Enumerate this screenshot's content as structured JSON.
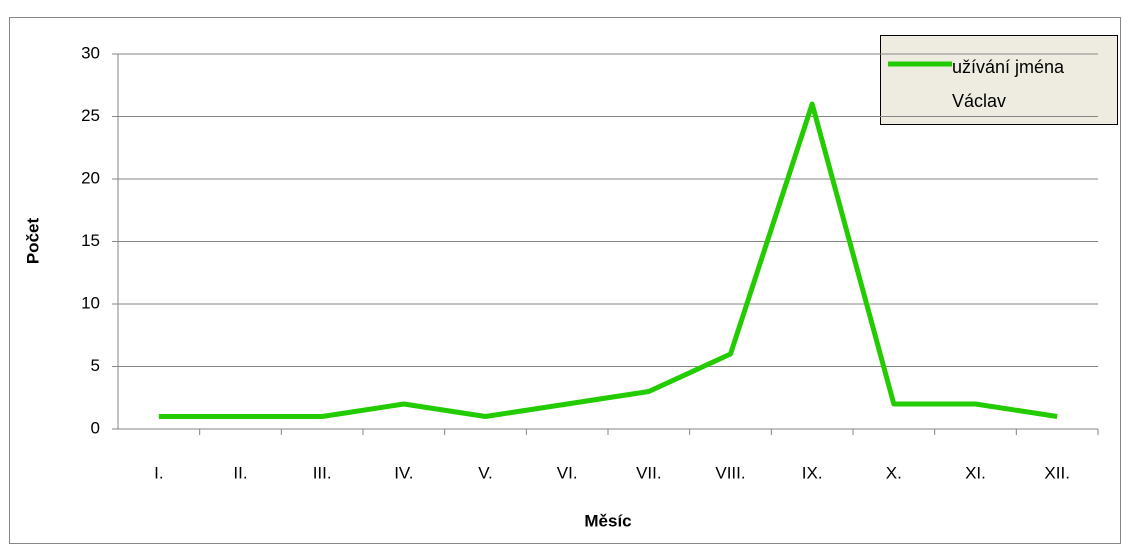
{
  "chart_data": {
    "type": "line",
    "x_label": "Měsíc",
    "y_label": "Počet",
    "categories": [
      "I.",
      "II.",
      "III.",
      "IV.",
      "V.",
      "VI.",
      "VII.",
      "VIII.",
      "IX.",
      "X.",
      "XI.",
      "XII."
    ],
    "series": [
      {
        "name": "užívání jména Václav",
        "color": "#22cc00",
        "values": [
          1,
          1,
          1,
          2,
          1,
          2,
          3,
          6,
          26,
          2,
          2,
          1
        ]
      }
    ],
    "ylim": [
      0,
      30
    ],
    "yticks": [
      0,
      5,
      10,
      15,
      20,
      25,
      30
    ],
    "grid": true,
    "legend": "upper right"
  }
}
